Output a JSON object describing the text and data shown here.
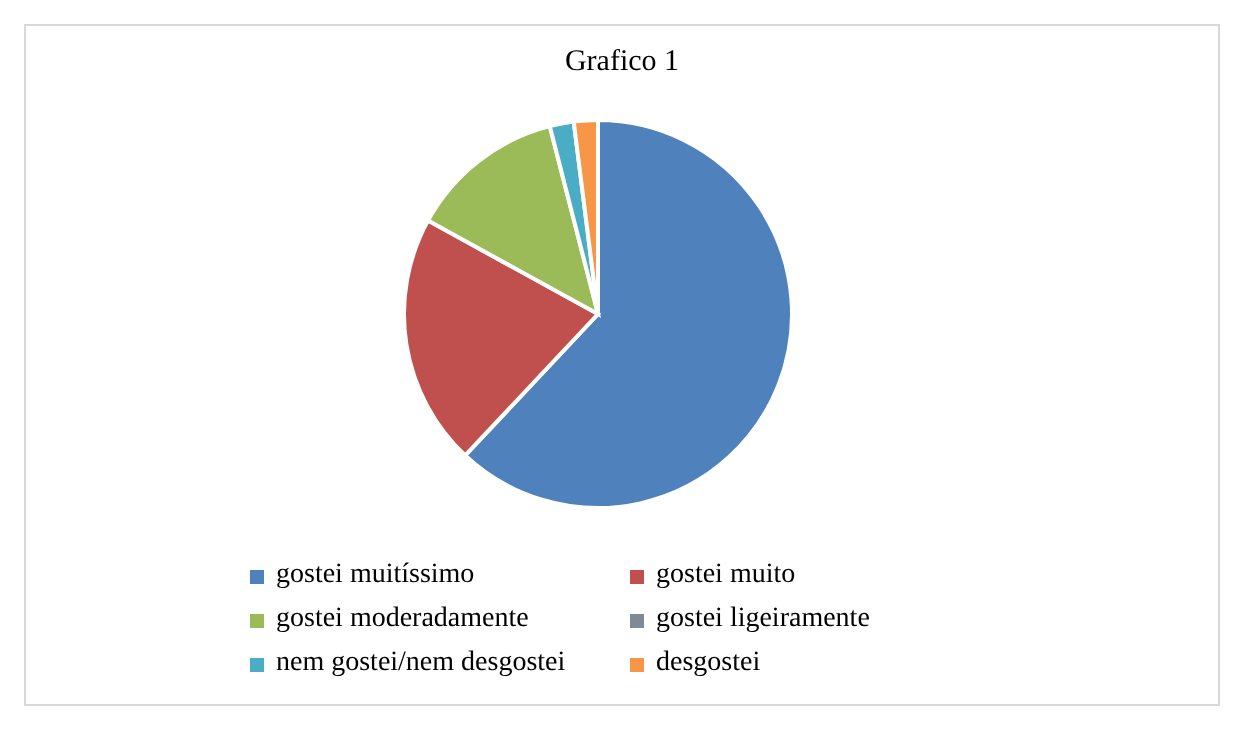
{
  "chart_data": {
    "type": "pie",
    "title": "Grafico 1",
    "categories": [
      "gostei muitíssimo",
      "gostei muito",
      "gostei moderadamente",
      "gostei ligeiramente",
      "nem gostei/nem desgostei",
      "desgostei"
    ],
    "values": [
      62,
      21,
      13,
      0,
      2,
      2
    ],
    "colors": [
      "#4f81bd",
      "#c0504d",
      "#9bbb59",
      "#7f8a99",
      "#4bacc6",
      "#f79646"
    ],
    "legend": "bottom"
  }
}
